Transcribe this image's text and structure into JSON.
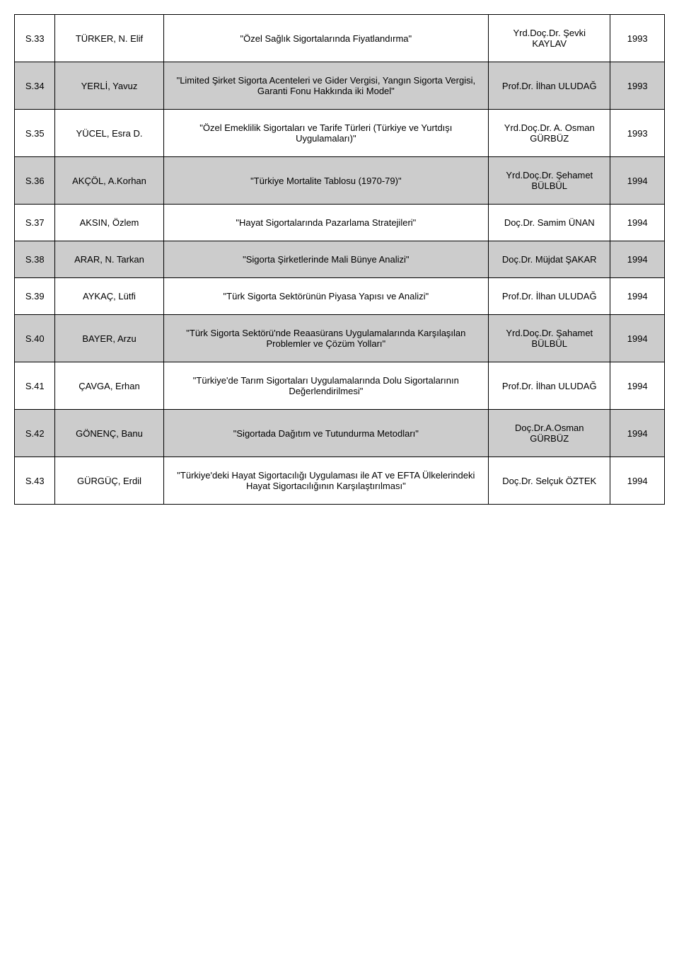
{
  "table": {
    "row_colors": {
      "shaded": "#cccccc",
      "plain": "#ffffff"
    },
    "border_color": "#000000",
    "font_family": "Comic Sans MS",
    "font_size_pt": 10,
    "columns": [
      "id",
      "name",
      "title",
      "advisor",
      "year"
    ],
    "col_widths_pct": [
      6,
      16,
      48,
      18,
      8
    ],
    "rows": [
      {
        "shade": "plain",
        "id": "S.33",
        "name": "TÜRKER, N. Elif",
        "title": "\"Özel Sağlık Sigortalarında  Fiyatlandırma\"",
        "advisor": "Yrd.Doç.Dr. Şevki KAYLAV",
        "year": "1993"
      },
      {
        "shade": "shaded",
        "id": "S.34",
        "name": "YERLİ, Yavuz",
        "title": "\"Limited Şirket Sigorta Acenteleri ve Gider Vergisi, Yangın Sigorta Vergisi, Garanti Fonu Hakkında iki Model\"",
        "advisor": "Prof.Dr. İlhan ULUDAĞ",
        "year": "1993"
      },
      {
        "shade": "plain",
        "id": "S.35",
        "name": "YÜCEL, Esra D.",
        "title": "\"Özel Emeklilik Sigortaları ve Tarife Türleri (Türkiye ve Yurtdışı Uygulamaları)\"",
        "advisor": "Yrd.Doç.Dr. A. Osman GÜRBÜZ",
        "year": "1993"
      },
      {
        "shade": "shaded",
        "id": "S.36",
        "name": "AKÇÖL, A.Korhan",
        "title": "\"Türkiye Mortalite Tablosu (1970-79)\"",
        "advisor": "Yrd.Doç.Dr. Şehamet BÜLBÜL",
        "year": "1994"
      },
      {
        "shade": "plain",
        "id": "S.37",
        "name": "AKSIN, Özlem",
        "title": "\"Hayat Sigortalarında Pazarlama Stratejileri\"",
        "advisor": "Doç.Dr. Samim ÜNAN",
        "year": "1994"
      },
      {
        "shade": "shaded",
        "id": "S.38",
        "name": "ARAR, N. Tarkan",
        "title": "\"Sigorta Şirketlerinde Mali Bünye Analizi\"",
        "advisor": "Doç.Dr. Müjdat ŞAKAR",
        "year": "1994"
      },
      {
        "shade": "plain",
        "id": "S.39",
        "name": "AYKAÇ, Lütfi",
        "title": "\"Türk Sigorta Sektörünün Piyasa Yapısı ve Analizi\"",
        "advisor": "Prof.Dr. İlhan ULUDAĞ",
        "year": "1994"
      },
      {
        "shade": "shaded",
        "id": "S.40",
        "name": "BAYER, Arzu",
        "title": "\"Türk Sigorta Sektörü'nde Reaasürans Uygulamalarında Karşılaşılan Problemler ve Çözüm Yolları\"",
        "advisor": "Yrd.Doç.Dr. Şahamet BÜLBÜL",
        "year": "1994"
      },
      {
        "shade": "plain",
        "id": "S.41",
        "name": "ÇAVGA, Erhan",
        "title": "\"Türkiye'de Tarım Sigortaları Uygulamalarında Dolu  Sigortalarının Değerlendirilmesi\"",
        "advisor": "Prof.Dr. İlhan ULUDAĞ",
        "year": "1994"
      },
      {
        "shade": "shaded",
        "id": "S.42",
        "name": "GÖNENÇ, Banu",
        "title": "\"Sigortada Dağıtım ve Tutundurma Metodları\"",
        "advisor": "Doç.Dr.A.Osman GÜRBÜZ",
        "year": "1994"
      },
      {
        "shade": "plain",
        "id": "S.43",
        "name": "GÜRGÜÇ, Erdil",
        "title": "\"Türkiye'deki Hayat Sigortacılığı Uygulaması ile AT ve EFTA Ülkelerindeki Hayat Sigortacılığının Karşılaştırılması\"",
        "advisor": "Doç.Dr. Selçuk ÖZTEK",
        "year": "1994"
      }
    ]
  }
}
